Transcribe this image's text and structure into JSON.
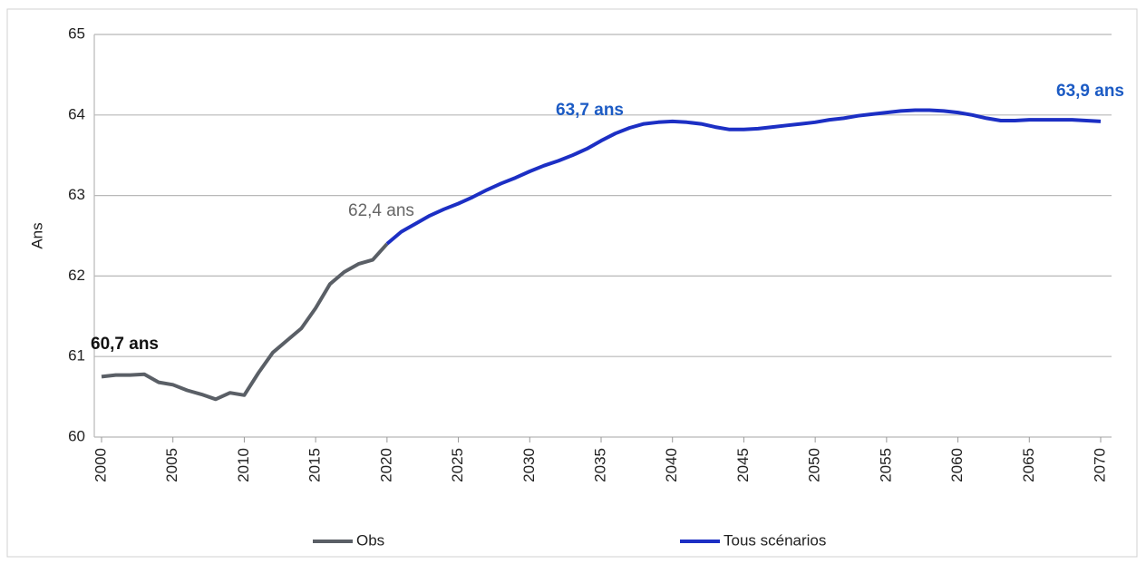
{
  "chart_data": {
    "type": "line",
    "y_label": "Ans",
    "x": [
      2000,
      2001,
      2002,
      2003,
      2004,
      2005,
      2006,
      2007,
      2008,
      2009,
      2010,
      2011,
      2012,
      2013,
      2014,
      2015,
      2016,
      2017,
      2018,
      2019,
      2020,
      2021,
      2022,
      2023,
      2024,
      2025,
      2026,
      2027,
      2028,
      2029,
      2030,
      2031,
      2032,
      2033,
      2034,
      2035,
      2036,
      2037,
      2038,
      2039,
      2040,
      2041,
      2042,
      2043,
      2044,
      2045,
      2046,
      2047,
      2048,
      2049,
      2050,
      2051,
      2052,
      2053,
      2054,
      2055,
      2056,
      2057,
      2058,
      2059,
      2060,
      2061,
      2062,
      2063,
      2064,
      2065,
      2066,
      2067,
      2068,
      2069,
      2070
    ],
    "series": [
      {
        "name": "Obs",
        "color": "#5a5f66",
        "values": [
          60.75,
          60.77,
          60.77,
          60.78,
          60.68,
          60.65,
          60.58,
          60.53,
          60.47,
          60.55,
          60.52,
          60.8,
          61.05,
          61.2,
          61.35,
          61.6,
          61.9,
          62.05,
          62.15,
          62.2,
          62.4,
          null,
          null,
          null,
          null,
          null,
          null,
          null,
          null,
          null,
          null,
          null,
          null,
          null,
          null,
          null,
          null,
          null,
          null,
          null,
          null,
          null,
          null,
          null,
          null,
          null,
          null,
          null,
          null,
          null,
          null,
          null,
          null,
          null,
          null,
          null,
          null,
          null,
          null,
          null,
          null,
          null,
          null,
          null,
          null,
          null,
          null,
          null,
          null,
          null,
          null
        ]
      },
      {
        "name": "Tous scénarios",
        "color": "#1c2fc4",
        "values": [
          null,
          null,
          null,
          null,
          null,
          null,
          null,
          null,
          null,
          null,
          null,
          null,
          null,
          null,
          null,
          null,
          null,
          null,
          null,
          null,
          62.4,
          62.55,
          62.65,
          62.75,
          62.83,
          62.9,
          62.98,
          63.07,
          63.15,
          63.22,
          63.3,
          63.37,
          63.43,
          63.5,
          63.58,
          63.68,
          63.77,
          63.84,
          63.89,
          63.91,
          63.92,
          63.91,
          63.89,
          63.85,
          63.82,
          63.82,
          63.83,
          63.85,
          63.87,
          63.89,
          63.91,
          63.94,
          63.96,
          63.99,
          64.01,
          64.03,
          64.05,
          64.06,
          64.06,
          64.05,
          64.03,
          64.0,
          63.96,
          63.93,
          63.93,
          63.94,
          63.94,
          63.94,
          63.94,
          63.93,
          63.92
        ]
      }
    ],
    "annotations": [
      "60,7 ans",
      "62,4 ans",
      "63,7 ans",
      "63,9 ans"
    ],
    "xlim": [
      2000,
      2070
    ],
    "xticks": [
      2000,
      2005,
      2010,
      2015,
      2020,
      2025,
      2030,
      2035,
      2040,
      2045,
      2050,
      2055,
      2060,
      2065,
      2070
    ],
    "ylim": [
      60,
      65
    ],
    "yticks": [
      60,
      61,
      62,
      63,
      64,
      65
    ],
    "grid": true
  }
}
